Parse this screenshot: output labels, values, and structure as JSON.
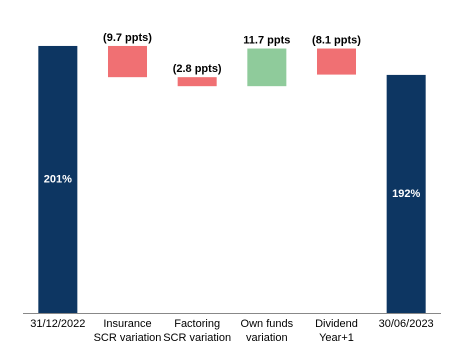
{
  "chart_data": {
    "type": "waterfall",
    "categories": [
      "31/12/2022",
      "Insurance\nSCR variation",
      "Factoring\nSCR variation",
      "Own funds\nvariation",
      "Dividend\nYear+1",
      "30/06/2023"
    ],
    "measure": [
      "absolute",
      "relative",
      "relative",
      "relative",
      "relative",
      "absolute"
    ],
    "values": [
      201,
      -9.7,
      -2.8,
      11.7,
      -8.1,
      192
    ],
    "value_labels": [
      "201%",
      "(9.7 ppts)",
      "(2.8 ppts)",
      "11.7 ppts",
      "(8.1 ppts)",
      "192%"
    ],
    "total_color": "#0d3662",
    "increase_color": "#8fcb9b",
    "decrease_color": "#f07073",
    "ylim": [
      118,
      210
    ]
  }
}
